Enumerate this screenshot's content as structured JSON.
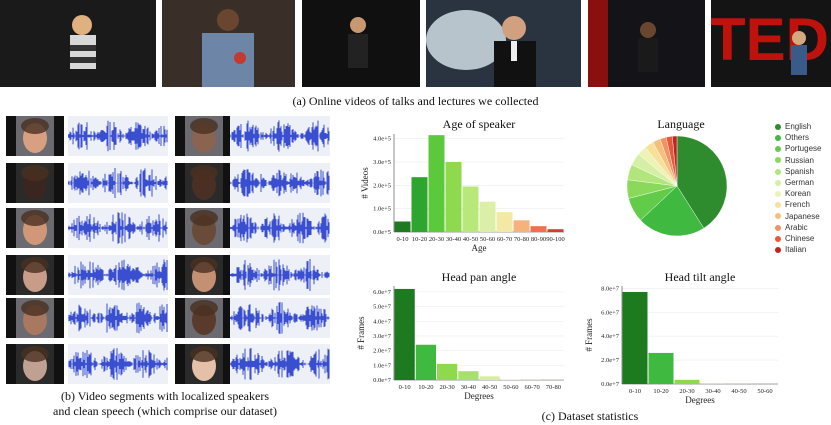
{
  "captions": {
    "a": "(a) Online videos of talks and lectures we collected",
    "b_line1": "(b) Video segments with localized speakers",
    "b_line2": "and clean speech (which comprise our dataset)",
    "c": "(c) Dataset statistics"
  },
  "watermark": "TED",
  "chart_data": [
    {
      "type": "bar",
      "title": "Age of speaker",
      "xlabel": "Age",
      "ylabel": "# Videos",
      "categories": [
        "0-10",
        "10-20",
        "20-30",
        "30-40",
        "40-50",
        "50-60",
        "60-70",
        "70-80",
        "80-90",
        "90-100"
      ],
      "values": [
        45000,
        235000,
        415000,
        300000,
        195000,
        130000,
        85000,
        50000,
        25000,
        12000
      ],
      "colors": [
        "#1e7a1e",
        "#2ea52e",
        "#5cc83c",
        "#8fd94f",
        "#b9e87a",
        "#dcefa6",
        "#f3e9a5",
        "#f5b27a",
        "#ee7050",
        "#d63b2c"
      ],
      "yticks": [
        "0.0e+5",
        "1.0e+5",
        "2.0e+5",
        "3.0e+5",
        "4.0e+5"
      ],
      "ylim": [
        0,
        420000
      ]
    },
    {
      "type": "pie",
      "title": "Language",
      "labels": [
        "English",
        "Others",
        "Portugese",
        "Russian",
        "Spanish",
        "German",
        "Korean",
        "French",
        "Japanese",
        "Arabic",
        "Chinese",
        "Italian"
      ],
      "values": [
        41,
        22,
        8,
        6,
        5,
        4,
        3,
        3,
        2.5,
        2,
        2,
        1.5
      ],
      "colors": [
        "#2e8b2e",
        "#3fb93f",
        "#62cc4a",
        "#8bd95a",
        "#b2e57c",
        "#d5efa5",
        "#eef2b4",
        "#f6e09a",
        "#f7bf7e",
        "#f1925f",
        "#e55a3c",
        "#c4231f"
      ]
    },
    {
      "type": "bar",
      "title": "Head pan angle",
      "xlabel": "Degrees",
      "ylabel": "# Frames",
      "categories": [
        "0-10",
        "10-20",
        "20-30",
        "30-40",
        "40-50",
        "50-60",
        "60-70",
        "70-80"
      ],
      "values": [
        62000000,
        24000000,
        11000000,
        6000000,
        2500000,
        300000,
        200000,
        100000
      ],
      "colors": [
        "#1e7a1e",
        "#3fb93f",
        "#8fd94f",
        "#a7e06a",
        "#d6ef9c",
        "#eef4c0",
        "#f3f0c0",
        "#f5eec0"
      ],
      "yticks": [
        "0.0e+7",
        "1.0e+7",
        "2.0e+7",
        "3.0e+7",
        "4.0e+7",
        "5.0e+7",
        "6.0e+7"
      ],
      "ylim": [
        0,
        64000000
      ]
    },
    {
      "type": "bar",
      "title": "Head  tilt angle",
      "xlabel": "Degrees",
      "ylabel": "# Frames",
      "categories": [
        "0-10",
        "10-20",
        "20-30",
        "30-40",
        "40-50",
        "50-60"
      ],
      "values": [
        77000000,
        26000000,
        3500000,
        200000,
        100000,
        50000
      ],
      "colors": [
        "#1e7a1e",
        "#3fb93f",
        "#8fd94f",
        "#d6ef9c",
        "#eef4c0",
        "#f5eec0"
      ],
      "yticks": [
        "0.0e+7",
        "2.0e+7",
        "4.0e+7",
        "6.0e+7",
        "8.0e+7"
      ],
      "ylim": [
        0,
        82000000
      ]
    }
  ],
  "legend_colors": {
    "English": "#2e8b2e",
    "Others": "#3fb93f",
    "Portugese": "#62cc4a",
    "Russian": "#8bd95a",
    "Spanish": "#b2e57c",
    "German": "#d5efa5",
    "Korean": "#eef2b4",
    "French": "#f6e09a",
    "Japanese": "#f7bf7e",
    "Arabic": "#f1925f",
    "Chinese": "#e55a3c",
    "Italian": "#c4231f"
  }
}
